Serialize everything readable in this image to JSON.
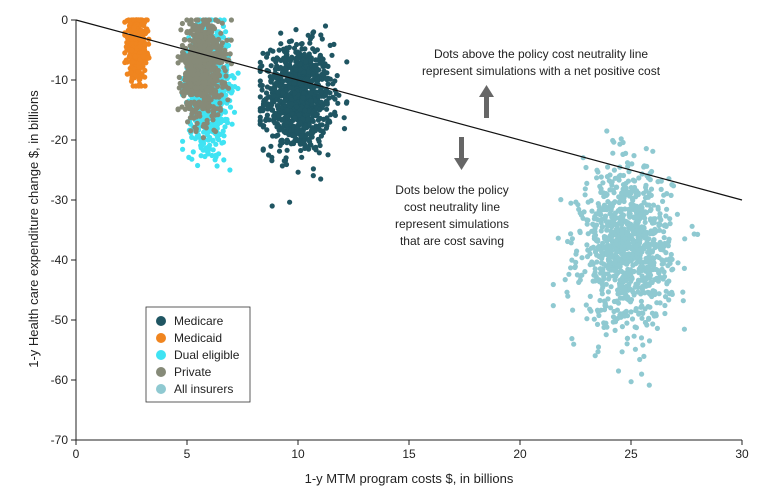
{
  "chart_data": {
    "type": "scatter",
    "xlabel": "1-y MTM program costs $, in billions",
    "ylabel": "1-y Health care expenditure change $, in billions",
    "xlim": [
      0,
      30
    ],
    "ylim": [
      -70,
      0
    ],
    "xticks": [
      0,
      5,
      10,
      15,
      20,
      25,
      30
    ],
    "yticks": [
      0,
      -10,
      -20,
      -30,
      -40,
      -50,
      -60,
      -70
    ],
    "reference_line": {
      "name": "policy cost neutrality line",
      "points": [
        [
          0,
          0
        ],
        [
          30,
          -30
        ]
      ]
    },
    "annotations": {
      "above": [
        "Dots above the policy cost neutrality line",
        "represent simulations with a net positive cost"
      ],
      "below": [
        "Dots below the policy",
        "cost neutrality line",
        "represent simulations",
        "that are cost saving"
      ],
      "arrow_up": "up-arrow-icon",
      "arrow_down": "down-arrow-icon"
    },
    "legend_position": "bottom-left",
    "series": [
      {
        "name": "Medicare",
        "color": "#1f5562",
        "x_mean": 10.0,
        "x_sd": 0.75,
        "y_mean": -13,
        "y_sd": 4.5,
        "x_range": [
          8.3,
          12.2
        ],
        "y_range": [
          -31,
          -1
        ],
        "count": 950
      },
      {
        "name": "Medicaid",
        "color": "#f0851f",
        "x_mean": 2.75,
        "x_sd": 0.22,
        "y_mean": -4.5,
        "y_sd": 2.5,
        "x_range": [
          2.2,
          3.3
        ],
        "y_range": [
          -11,
          0
        ],
        "count": 500
      },
      {
        "name": "Dual eligible",
        "color": "#3fe3f3",
        "x_mean": 6.0,
        "x_sd": 0.45,
        "y_mean": -11,
        "y_sd": 5,
        "x_range": [
          4.8,
          7.3
        ],
        "y_range": [
          -25,
          0
        ],
        "count": 800
      },
      {
        "name": "Private",
        "color": "#868a78",
        "x_mean": 5.7,
        "x_sd": 0.45,
        "y_mean": -8,
        "y_sd": 4,
        "x_range": [
          4.6,
          7.0
        ],
        "y_range": [
          -20,
          0
        ],
        "count": 800
      },
      {
        "name": "All insurers",
        "color": "#8fc9d1",
        "x_mean": 24.8,
        "x_sd": 1.0,
        "y_mean": -38,
        "y_sd": 6.5,
        "x_range": [
          21.5,
          28.0
        ],
        "y_range": [
          -64.5,
          -18
        ],
        "count": 1000
      }
    ]
  }
}
